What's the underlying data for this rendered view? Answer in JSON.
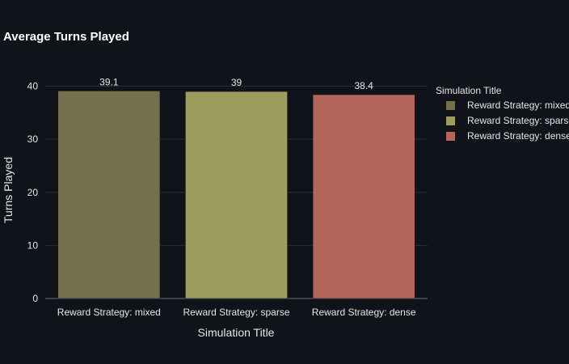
{
  "chart_data": {
    "type": "bar",
    "title": "Average Turns Played",
    "xlabel": "Simulation Title",
    "ylabel": "Turns Played",
    "categories": [
      "Reward Strategy: mixed",
      "Reward Strategy: sparse",
      "Reward Strategy: dense"
    ],
    "values": [
      39.1,
      39,
      38.4
    ],
    "value_labels": [
      "39.1",
      "39",
      "38.4"
    ],
    "colors": [
      "#75714f",
      "#9e9c5f",
      "#b5665a"
    ],
    "ylim": [
      0,
      41
    ],
    "yticks": [
      0,
      10,
      20,
      30,
      40
    ],
    "grid": true,
    "legend": {
      "title": "Simulation Title",
      "placement": "right",
      "entries": [
        "Reward Strategy: mixed",
        "Reward Strategy: sparse",
        "Reward Strategy: dense"
      ]
    }
  }
}
